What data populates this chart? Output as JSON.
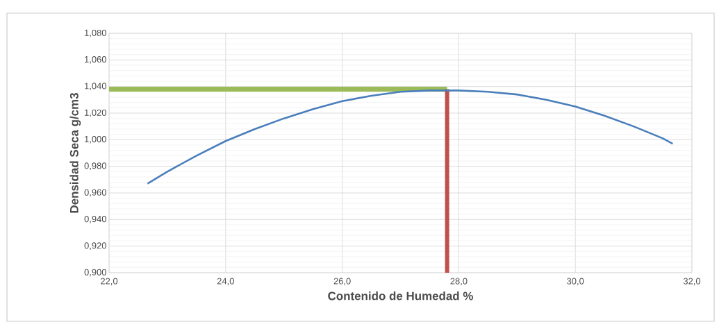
{
  "chart_data": {
    "type": "line",
    "xlabel": "Contenido de Humedad %",
    "ylabel": "Densidad Seca g/cm3",
    "xlim": [
      22,
      32
    ],
    "ylim": [
      0.9,
      1.08
    ],
    "xticks": [
      {
        "value": 22,
        "label": "22,0"
      },
      {
        "value": 24,
        "label": "24,0"
      },
      {
        "value": 26,
        "label": "26,0"
      },
      {
        "value": 28,
        "label": "28,0"
      },
      {
        "value": 30,
        "label": "30,0"
      },
      {
        "value": 32,
        "label": "32,0"
      }
    ],
    "yticks": [
      {
        "value": 0.9,
        "label": "0,900"
      },
      {
        "value": 0.92,
        "label": "0,920"
      },
      {
        "value": 0.94,
        "label": "0,940"
      },
      {
        "value": 0.96,
        "label": "0,960"
      },
      {
        "value": 0.98,
        "label": "0,980"
      },
      {
        "value": 1.0,
        "label": "1,000"
      },
      {
        "value": 1.02,
        "label": "1,020"
      },
      {
        "value": 1.04,
        "label": "1,040"
      },
      {
        "value": 1.06,
        "label": "1,060"
      },
      {
        "value": 1.08,
        "label": "1,080"
      }
    ],
    "grid": true,
    "marker": "none",
    "line_style": "solid",
    "series": [
      {
        "color": "#4a7ebb",
        "x": [
          22.66,
          23,
          23.5,
          24,
          24.5,
          25,
          25.5,
          26,
          26.5,
          27,
          27.5,
          28,
          28.5,
          29,
          29.5,
          30,
          30.5,
          31,
          31.5,
          31.67
        ],
        "values": [
          0.967,
          0.976,
          0.988,
          0.999,
          1.008,
          1.016,
          1.023,
          1.029,
          1.033,
          1.036,
          1.037,
          1.037,
          1.036,
          1.034,
          1.03,
          1.025,
          1.018,
          1.01,
          1.001,
          0.997
        ]
      },
      {
        "color": "#9bbb59",
        "x": [
          22,
          27.8
        ],
        "values": [
          1.038,
          1.038
        ]
      },
      {
        "color": "#c0504d",
        "x": [
          27.8,
          27.8
        ],
        "values": [
          0.9,
          1.038
        ]
      }
    ]
  }
}
